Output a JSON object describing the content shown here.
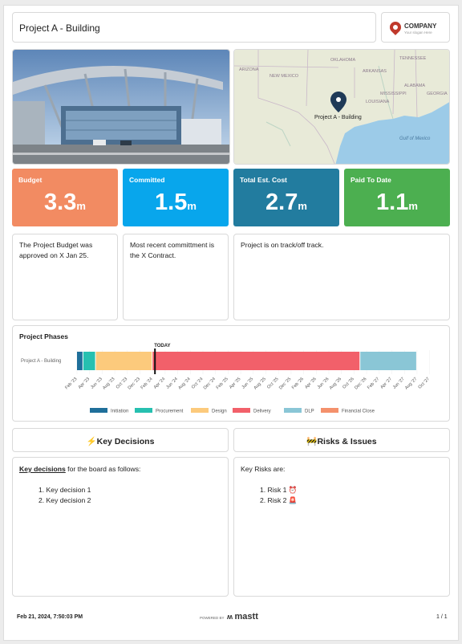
{
  "header": {
    "project_title": "Project A - Building",
    "company_name": "COMPANY",
    "company_tagline": "Your slogan Here"
  },
  "map": {
    "labels": [
      "ARIZONA",
      "NEW MEXICO",
      "OKLAHOMA",
      "ARKANSAS",
      "TENNESSEE",
      "MISSISSIPPI",
      "ALABAMA",
      "GEORGIA",
      "LOUISIANA",
      "Gulf of Mexico"
    ],
    "pin_label": "Project A - Building",
    "pin_color": "#1f3a57"
  },
  "kpis": [
    {
      "label": "Budget",
      "value": "3.3",
      "unit": "m",
      "color": "#f28b62"
    },
    {
      "label": "Committed",
      "value": "1.5",
      "unit": "m",
      "color": "#08a6ec"
    },
    {
      "label": "Total Est. Cost",
      "value": "2.7",
      "unit": "m",
      "color": "#227c9f"
    },
    {
      "label": "Paid To Date",
      "value": "1.1",
      "unit": "m",
      "color": "#4caf50"
    }
  ],
  "notes": {
    "budget": "The Project Budget was approved on X Jan 25.",
    "committed": "Most recent committment is the X Contract.",
    "track": "Project is on track/off track."
  },
  "phases": {
    "title": "Project Phases",
    "row_label": "Project A - Building",
    "today_label": "TODAY",
    "ticks": [
      "Feb '23",
      "Apr '23",
      "Jun '23",
      "Aug '23",
      "Oct '23",
      "Dec '23",
      "Feb '24",
      "Apr '24",
      "Jun '24",
      "Aug '24",
      "Oct '24",
      "Dec '24",
      "Feb '25",
      "Apr '25",
      "Jun '25",
      "Aug '25",
      "Oct '25",
      "Dec '25",
      "Feb '26",
      "Apr '26",
      "Jun '26",
      "Aug '26",
      "Oct '26",
      "Dec '26",
      "Feb '27",
      "Apr '27",
      "Jun '27",
      "Aug '27",
      "Oct '27"
    ],
    "legend": [
      {
        "name": "Initiation",
        "color": "#1f6f9a"
      },
      {
        "name": "Procurement",
        "color": "#26c0b0"
      },
      {
        "name": "Design",
        "color": "#fcca7c"
      },
      {
        "name": "Delivery",
        "color": "#f2606a"
      },
      {
        "name": "DLP",
        "color": "#8ac6d6"
      },
      {
        "name": "Financial Close",
        "color": "#f4916c"
      }
    ],
    "segments": [
      {
        "phase": "Initiation",
        "start": "Feb '23",
        "end": "Mar '23"
      },
      {
        "phase": "Procurement",
        "start": "Mar '23",
        "end": "May '23"
      },
      {
        "phase": "Design",
        "start": "May '23",
        "end": "Feb '24"
      },
      {
        "phase": "Delivery",
        "start": "Feb '24",
        "end": "Nov '26"
      },
      {
        "phase": "DLP",
        "start": "Nov '26",
        "end": "Aug '27"
      }
    ],
    "today": "Feb '24"
  },
  "decisions": {
    "heading": "⚡Key Decisions",
    "intro_bold": "Key decisions",
    "intro_rest": " for the board as follows:",
    "items": [
      "1. Key decision 1",
      "2. Key decision 2"
    ]
  },
  "risks": {
    "heading": "🚧Risks & Issues",
    "intro": "Key Risks are:",
    "items": [
      "1. Risk 1 ⏰",
      "2. Risk 2 🚨"
    ]
  },
  "footer": {
    "timestamp": "Feb 21, 2024, 7:50:03 PM",
    "powered_by": "POWERED BY",
    "brand": "mastt",
    "page": "1 / 1"
  }
}
